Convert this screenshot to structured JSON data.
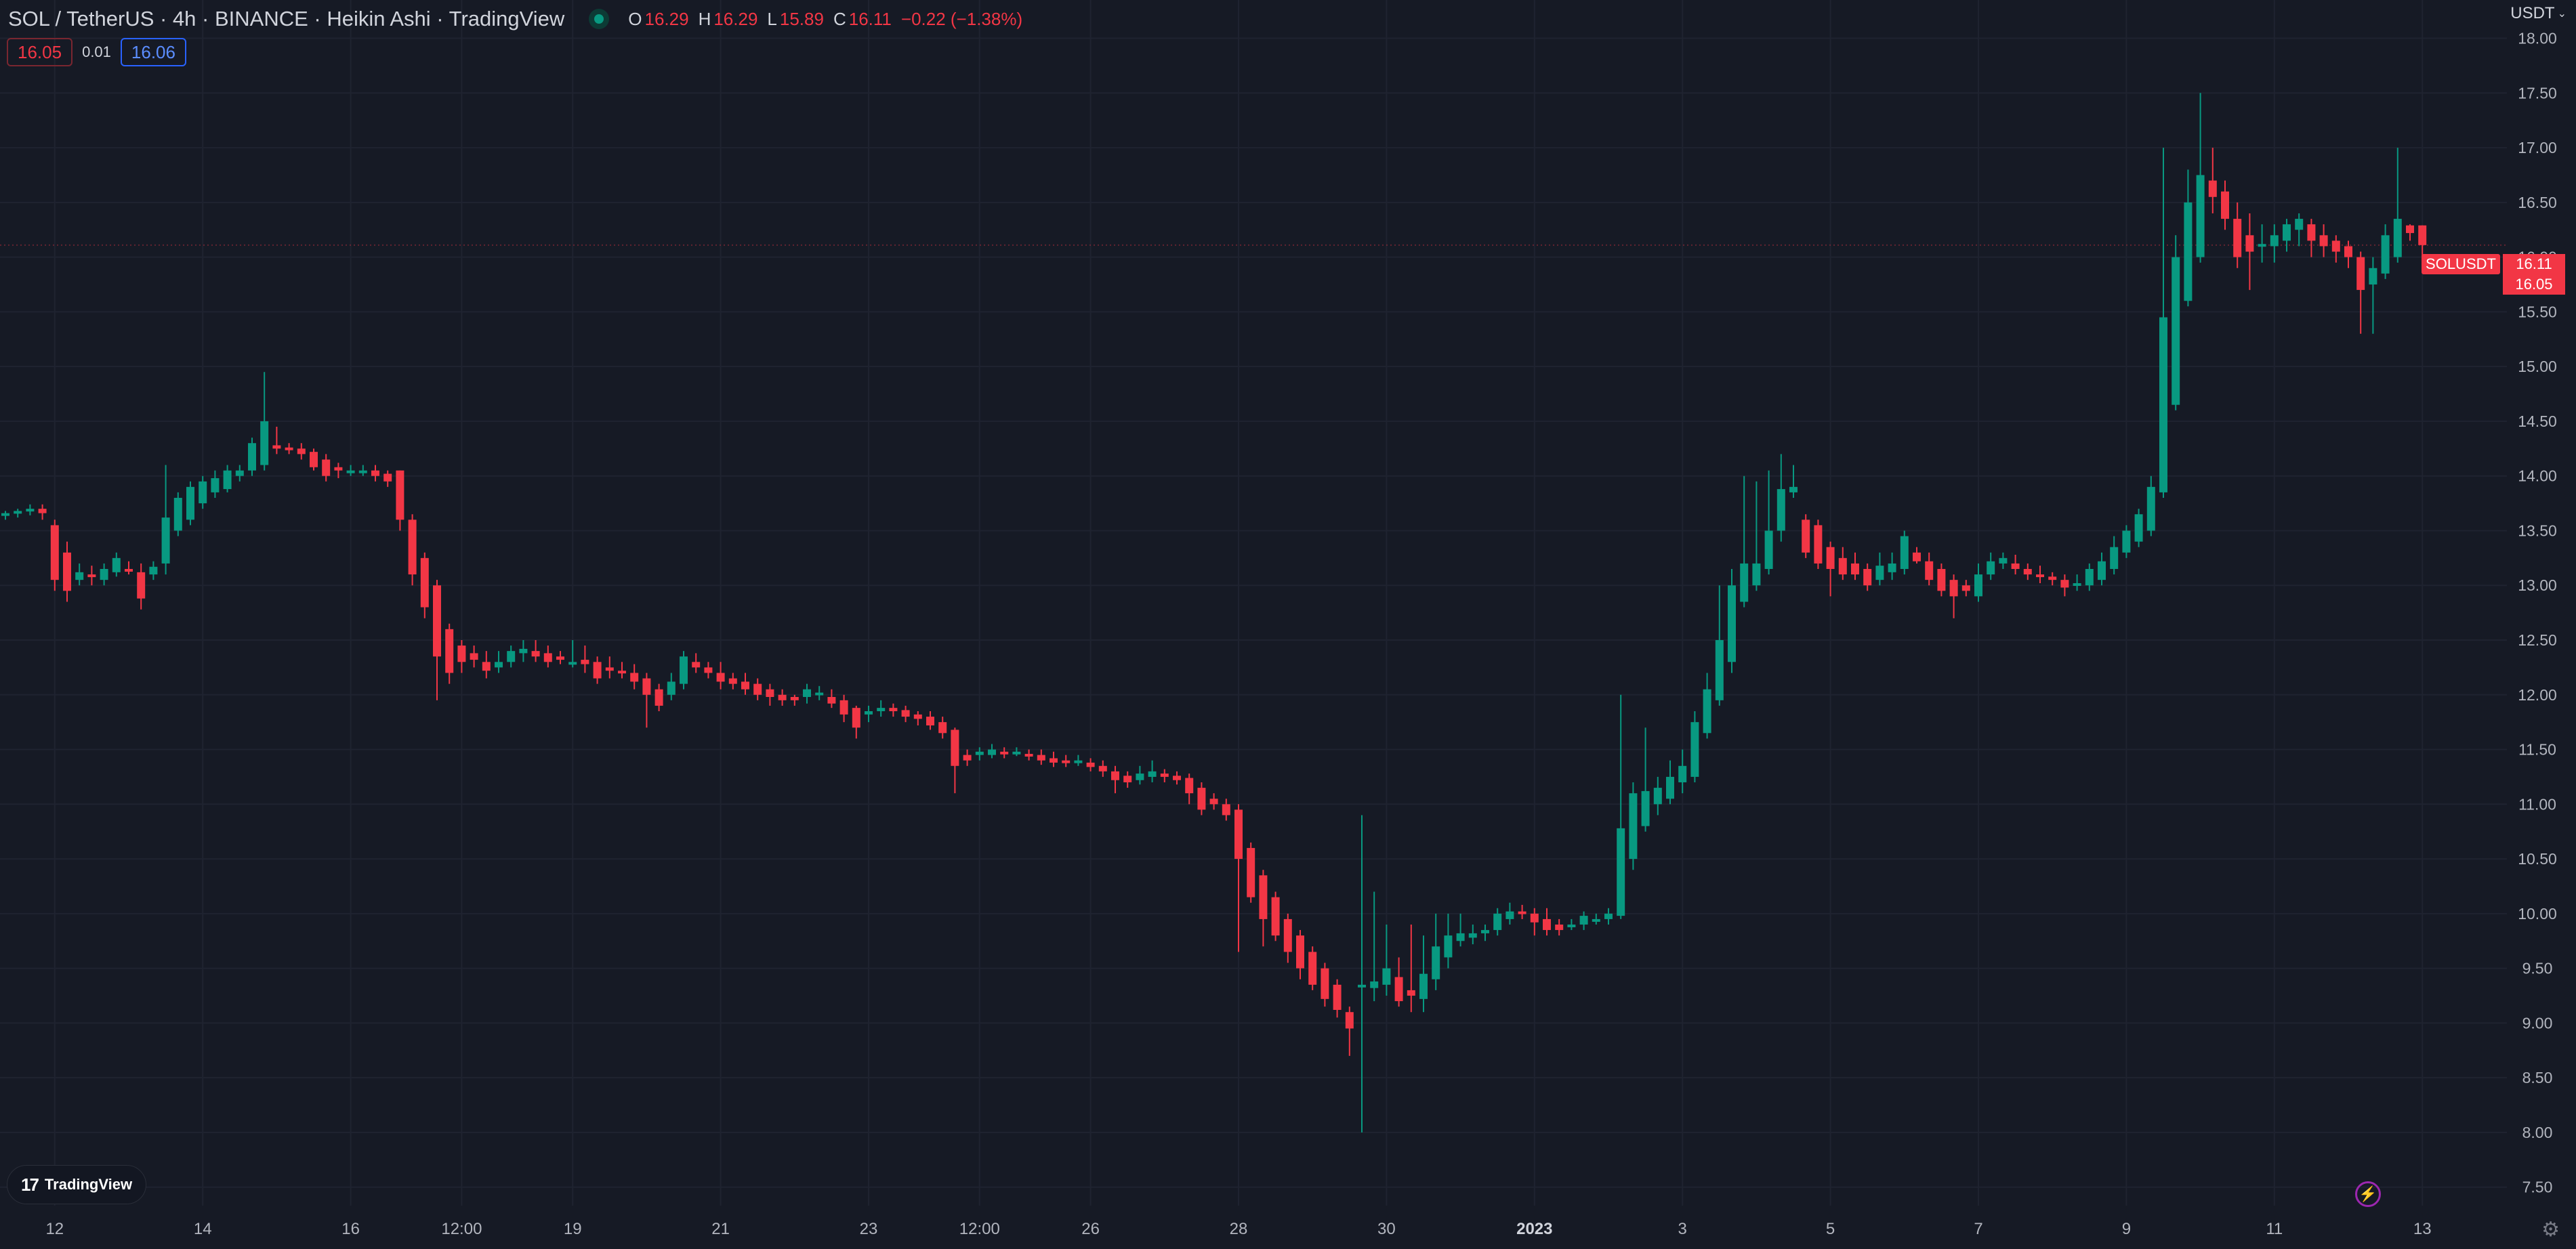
{
  "header": {
    "title": "SOL / TetherUS · 4h · BINANCE · Heikin Ashi · TradingView",
    "ohlc": {
      "o_label": "O",
      "o": "16.29",
      "h_label": "H",
      "h": "16.29",
      "l_label": "L",
      "l": "15.89",
      "c_label": "C",
      "c": "16.11",
      "change": "−0.22 (−1.38%)"
    }
  },
  "quote": {
    "sell": "16.05",
    "spread": "0.01",
    "buy": "16.06"
  },
  "currency": {
    "label": "USDT",
    "chevron": "⌄"
  },
  "price_scale": {
    "symbol_label": "SOLUSDT",
    "last_price": "16.11",
    "current_price": "16.05",
    "ticks": [
      "18.00",
      "17.50",
      "17.00",
      "16.50",
      "16.00",
      "15.50",
      "15.00",
      "14.50",
      "14.00",
      "13.50",
      "13.00",
      "12.50",
      "12.00",
      "11.50",
      "11.00",
      "10.50",
      "10.00",
      "9.50",
      "9.00",
      "8.50",
      "8.00",
      "7.50"
    ]
  },
  "time_scale": {
    "ticks": [
      "12",
      "14",
      "16",
      "12:00",
      "19",
      "21",
      "23",
      "12:00",
      "26",
      "28",
      "30",
      "2023",
      "3",
      "5",
      "7",
      "9",
      "11",
      "13"
    ]
  },
  "branding": {
    "logo_text": "TradingView",
    "logo_mark": "17"
  },
  "icons": {
    "bolt": "lightning-icon",
    "settings": "gear-icon"
  },
  "colors": {
    "up": "#089981",
    "down": "#f23645",
    "background": "#161a25",
    "grid": "#1f2330"
  },
  "chart_data": {
    "type": "candlestick",
    "style": "Heikin Ashi",
    "symbol": "SOL / TetherUS",
    "interval": "4h",
    "ylim": [
      7.3,
      18.35
    ],
    "grid": true,
    "time_ticks": [
      {
        "label": "12",
        "index": 4
      },
      {
        "label": "14",
        "index": 16
      },
      {
        "label": "16",
        "index": 28
      },
      {
        "label": "12:00",
        "index": 37
      },
      {
        "label": "19",
        "index": 46
      },
      {
        "label": "21",
        "index": 58
      },
      {
        "label": "23",
        "index": 70
      },
      {
        "label": "12:00",
        "index": 79
      },
      {
        "label": "26",
        "index": 88
      },
      {
        "label": "28",
        "index": 100
      },
      {
        "label": "30",
        "index": 112
      },
      {
        "label": "2023",
        "index": 124
      },
      {
        "label": "3",
        "index": 136
      },
      {
        "label": "5",
        "index": 148
      },
      {
        "label": "7",
        "index": 160
      },
      {
        "label": "9",
        "index": 172
      },
      {
        "label": "11",
        "index": 184
      },
      {
        "label": "13",
        "index": 196
      }
    ],
    "candles": [
      [
        13.64,
        13.66,
        13.6,
        13.68
      ],
      [
        13.66,
        13.68,
        13.62,
        13.7
      ],
      [
        13.68,
        13.7,
        13.64,
        13.74
      ],
      [
        13.7,
        13.66,
        13.6,
        13.74
      ],
      [
        13.55,
        13.05,
        12.95,
        13.6
      ],
      [
        13.3,
        12.95,
        12.85,
        13.4
      ],
      [
        13.05,
        13.12,
        13.0,
        13.2
      ],
      [
        13.1,
        13.08,
        13.0,
        13.18
      ],
      [
        13.05,
        13.15,
        13.0,
        13.2
      ],
      [
        13.12,
        13.25,
        13.08,
        13.3
      ],
      [
        13.15,
        13.14,
        13.1,
        13.22
      ],
      [
        13.12,
        12.88,
        12.78,
        13.2
      ],
      [
        13.1,
        13.17,
        13.05,
        13.22
      ],
      [
        13.2,
        13.62,
        13.1,
        14.1
      ],
      [
        13.5,
        13.8,
        13.45,
        13.85
      ],
      [
        13.6,
        13.9,
        13.55,
        13.95
      ],
      [
        13.75,
        13.95,
        13.7,
        14.0
      ],
      [
        13.85,
        13.98,
        13.8,
        14.05
      ],
      [
        13.88,
        14.05,
        13.85,
        14.1
      ],
      [
        14.0,
        14.05,
        13.95,
        14.1
      ],
      [
        14.05,
        14.3,
        14.0,
        14.35
      ],
      [
        14.1,
        14.5,
        14.05,
        14.95
      ],
      [
        14.28,
        14.25,
        14.2,
        14.45
      ],
      [
        14.26,
        14.24,
        14.2,
        14.3
      ],
      [
        14.25,
        14.2,
        14.15,
        14.3
      ],
      [
        14.22,
        14.08,
        14.05,
        14.25
      ],
      [
        14.15,
        14.0,
        13.95,
        14.2
      ],
      [
        14.08,
        14.05,
        13.98,
        14.12
      ],
      [
        14.05,
        14.05,
        14.0,
        14.1
      ],
      [
        14.05,
        14.05,
        14.0,
        14.1
      ],
      [
        14.05,
        14.0,
        13.95,
        14.1
      ],
      [
        14.02,
        13.95,
        13.9,
        14.05
      ],
      [
        14.05,
        13.6,
        13.5,
        14.05
      ],
      [
        13.6,
        13.1,
        13.0,
        13.65
      ],
      [
        13.25,
        12.8,
        12.7,
        13.3
      ],
      [
        13.0,
        12.35,
        11.95,
        13.05
      ],
      [
        12.6,
        12.2,
        12.1,
        12.65
      ],
      [
        12.45,
        12.3,
        12.2,
        12.5
      ],
      [
        12.38,
        12.32,
        12.25,
        12.45
      ],
      [
        12.3,
        12.22,
        12.15,
        12.4
      ],
      [
        12.25,
        12.3,
        12.2,
        12.4
      ],
      [
        12.3,
        12.4,
        12.25,
        12.45
      ],
      [
        12.38,
        12.42,
        12.3,
        12.5
      ],
      [
        12.4,
        12.35,
        12.3,
        12.5
      ],
      [
        12.38,
        12.3,
        12.25,
        12.45
      ],
      [
        12.35,
        12.32,
        12.28,
        12.4
      ],
      [
        12.3,
        12.3,
        12.25,
        12.5
      ],
      [
        12.32,
        12.28,
        12.2,
        12.45
      ],
      [
        12.3,
        12.15,
        12.1,
        12.35
      ],
      [
        12.25,
        12.22,
        12.15,
        12.35
      ],
      [
        12.22,
        12.2,
        12.15,
        12.3
      ],
      [
        12.2,
        12.12,
        12.05,
        12.28
      ],
      [
        12.15,
        12.0,
        11.7,
        12.2
      ],
      [
        12.05,
        11.9,
        11.85,
        12.1
      ],
      [
        12.0,
        12.12,
        11.95,
        12.2
      ],
      [
        12.1,
        12.35,
        12.05,
        12.4
      ],
      [
        12.3,
        12.25,
        12.2,
        12.38
      ],
      [
        12.25,
        12.2,
        12.15,
        12.3
      ],
      [
        12.2,
        12.12,
        12.05,
        12.3
      ],
      [
        12.15,
        12.1,
        12.05,
        12.2
      ],
      [
        12.12,
        12.05,
        12.0,
        12.2
      ],
      [
        12.1,
        12.0,
        11.95,
        12.15
      ],
      [
        12.05,
        11.98,
        11.9,
        12.1
      ],
      [
        12.0,
        11.95,
        11.9,
        12.05
      ],
      [
        11.98,
        11.95,
        11.9,
        12.0
      ],
      [
        11.98,
        12.05,
        11.92,
        12.1
      ],
      [
        12.0,
        12.02,
        11.95,
        12.08
      ],
      [
        11.98,
        11.92,
        11.88,
        12.05
      ],
      [
        11.95,
        11.82,
        11.75,
        12.0
      ],
      [
        11.88,
        11.7,
        11.6,
        11.9
      ],
      [
        11.82,
        11.85,
        11.75,
        11.9
      ],
      [
        11.85,
        11.88,
        11.8,
        11.95
      ],
      [
        11.88,
        11.85,
        11.8,
        11.92
      ],
      [
        11.86,
        11.8,
        11.75,
        11.9
      ],
      [
        11.82,
        11.78,
        11.72,
        11.85
      ],
      [
        11.8,
        11.72,
        11.68,
        11.85
      ],
      [
        11.75,
        11.65,
        11.6,
        11.8
      ],
      [
        11.68,
        11.35,
        11.1,
        11.7
      ],
      [
        11.45,
        11.4,
        11.35,
        11.5
      ],
      [
        11.45,
        11.48,
        11.4,
        11.52
      ],
      [
        11.45,
        11.5,
        11.42,
        11.55
      ],
      [
        11.48,
        11.46,
        11.42,
        11.52
      ],
      [
        11.47,
        11.48,
        11.44,
        11.52
      ],
      [
        11.46,
        11.45,
        11.4,
        11.5
      ],
      [
        11.45,
        11.4,
        11.36,
        11.5
      ],
      [
        11.42,
        11.38,
        11.34,
        11.48
      ],
      [
        11.4,
        11.38,
        11.34,
        11.45
      ],
      [
        11.39,
        11.4,
        11.35,
        11.45
      ],
      [
        11.38,
        11.34,
        11.3,
        11.42
      ],
      [
        11.35,
        11.3,
        11.25,
        11.4
      ],
      [
        11.3,
        11.22,
        11.1,
        11.35
      ],
      [
        11.26,
        11.2,
        11.15,
        11.3
      ],
      [
        11.22,
        11.28,
        11.18,
        11.35
      ],
      [
        11.25,
        11.3,
        11.2,
        11.4
      ],
      [
        11.28,
        11.25,
        11.2,
        11.32
      ],
      [
        11.26,
        11.22,
        11.18,
        11.3
      ],
      [
        11.24,
        11.1,
        11.0,
        11.28
      ],
      [
        11.15,
        10.95,
        10.9,
        11.2
      ],
      [
        11.05,
        11.0,
        10.95,
        11.1
      ],
      [
        11.0,
        10.9,
        10.85,
        11.05
      ],
      [
        10.95,
        10.5,
        9.65,
        11.0
      ],
      [
        10.6,
        10.15,
        10.1,
        10.65
      ],
      [
        10.35,
        9.95,
        9.7,
        10.4
      ],
      [
        10.15,
        9.8,
        9.75,
        10.2
      ],
      [
        9.95,
        9.65,
        9.55,
        10.0
      ],
      [
        9.8,
        9.5,
        9.4,
        9.85
      ],
      [
        9.65,
        9.35,
        9.3,
        9.7
      ],
      [
        9.5,
        9.22,
        9.15,
        9.55
      ],
      [
        9.35,
        9.12,
        9.05,
        9.4
      ],
      [
        9.1,
        8.95,
        8.7,
        9.15
      ],
      [
        9.33,
        9.35,
        8.0,
        10.9
      ],
      [
        9.32,
        9.38,
        9.2,
        10.2
      ],
      [
        9.35,
        9.5,
        9.25,
        9.9
      ],
      [
        9.42,
        9.2,
        9.15,
        9.6
      ],
      [
        9.3,
        9.25,
        9.1,
        9.9
      ],
      [
        9.22,
        9.45,
        9.1,
        9.8
      ],
      [
        9.4,
        9.7,
        9.3,
        10.0
      ],
      [
        9.6,
        9.8,
        9.5,
        10.0
      ],
      [
        9.75,
        9.82,
        9.7,
        10.0
      ],
      [
        9.78,
        9.82,
        9.72,
        9.9
      ],
      [
        9.82,
        9.85,
        9.75,
        9.9
      ],
      [
        9.85,
        10.0,
        9.8,
        10.05
      ],
      [
        9.95,
        10.02,
        9.9,
        10.1
      ],
      [
        10.02,
        10.0,
        9.95,
        10.08
      ],
      [
        10.0,
        9.92,
        9.8,
        10.05
      ],
      [
        9.95,
        9.85,
        9.8,
        10.05
      ],
      [
        9.9,
        9.85,
        9.8,
        9.95
      ],
      [
        9.88,
        9.9,
        9.85,
        9.95
      ],
      [
        9.9,
        9.98,
        9.85,
        10.02
      ],
      [
        9.95,
        9.95,
        9.9,
        10.0
      ],
      [
        9.95,
        10.0,
        9.9,
        10.05
      ],
      [
        9.98,
        10.78,
        9.95,
        12.0
      ],
      [
        10.5,
        11.1,
        10.4,
        11.2
      ],
      [
        10.8,
        11.12,
        10.75,
        11.7
      ],
      [
        11.0,
        11.15,
        10.9,
        11.25
      ],
      [
        11.05,
        11.25,
        11.0,
        11.4
      ],
      [
        11.2,
        11.35,
        11.1,
        11.5
      ],
      [
        11.25,
        11.75,
        11.2,
        11.85
      ],
      [
        11.65,
        12.05,
        11.6,
        12.2
      ],
      [
        11.95,
        12.5,
        11.9,
        13.0
      ],
      [
        12.3,
        13.0,
        12.2,
        13.15
      ],
      [
        12.85,
        13.2,
        12.8,
        14.0
      ],
      [
        13.0,
        13.2,
        12.95,
        13.95
      ],
      [
        13.15,
        13.5,
        13.1,
        14.05
      ],
      [
        13.5,
        13.88,
        13.4,
        14.2
      ],
      [
        13.85,
        13.9,
        13.8,
        14.1
      ],
      [
        13.6,
        13.3,
        13.25,
        13.65
      ],
      [
        13.55,
        13.2,
        13.15,
        13.6
      ],
      [
        13.35,
        13.15,
        12.9,
        13.4
      ],
      [
        13.25,
        13.1,
        13.05,
        13.35
      ],
      [
        13.2,
        13.1,
        13.05,
        13.3
      ],
      [
        13.15,
        13.0,
        12.95,
        13.2
      ],
      [
        13.05,
        13.18,
        13.0,
        13.3
      ],
      [
        13.12,
        13.2,
        13.05,
        13.3
      ],
      [
        13.15,
        13.45,
        13.1,
        13.5
      ],
      [
        13.3,
        13.22,
        13.2,
        13.35
      ],
      [
        13.22,
        13.05,
        13.0,
        13.3
      ],
      [
        13.15,
        12.95,
        12.9,
        13.2
      ],
      [
        13.05,
        12.9,
        12.7,
        13.1
      ],
      [
        13.0,
        12.95,
        12.9,
        13.05
      ],
      [
        12.9,
        13.1,
        12.85,
        13.2
      ],
      [
        13.1,
        13.22,
        13.05,
        13.3
      ],
      [
        13.2,
        13.25,
        13.15,
        13.3
      ],
      [
        13.2,
        13.15,
        13.1,
        13.28
      ],
      [
        13.15,
        13.1,
        13.05,
        13.2
      ],
      [
        13.1,
        13.08,
        13.02,
        13.18
      ],
      [
        13.08,
        13.05,
        13.0,
        13.12
      ],
      [
        13.05,
        12.98,
        12.9,
        13.1
      ],
      [
        13.0,
        13.02,
        12.95,
        13.1
      ],
      [
        13.0,
        13.15,
        12.95,
        13.2
      ],
      [
        13.05,
        13.22,
        13.0,
        13.3
      ],
      [
        13.15,
        13.35,
        13.1,
        13.45
      ],
      [
        13.3,
        13.5,
        13.25,
        13.55
      ],
      [
        13.4,
        13.65,
        13.35,
        13.7
      ],
      [
        13.5,
        13.9,
        13.45,
        14.0
      ],
      [
        13.85,
        15.45,
        13.8,
        17.0
      ],
      [
        14.65,
        16.0,
        14.6,
        16.2
      ],
      [
        15.6,
        16.5,
        15.55,
        16.8
      ],
      [
        16.0,
        16.75,
        15.95,
        17.5
      ],
      [
        16.7,
        16.55,
        16.4,
        17.0
      ],
      [
        16.6,
        16.35,
        16.25,
        16.7
      ],
      [
        16.35,
        16.0,
        15.9,
        16.5
      ],
      [
        16.2,
        16.05,
        15.7,
        16.4
      ],
      [
        16.1,
        16.12,
        15.95,
        16.3
      ],
      [
        16.1,
        16.2,
        15.95,
        16.3
      ],
      [
        16.15,
        16.3,
        16.05,
        16.35
      ],
      [
        16.25,
        16.35,
        16.1,
        16.4
      ],
      [
        16.3,
        16.15,
        16.0,
        16.35
      ],
      [
        16.2,
        16.1,
        16.0,
        16.3
      ],
      [
        16.15,
        16.05,
        15.95,
        16.2
      ],
      [
        16.1,
        16.0,
        15.9,
        16.15
      ],
      [
        16.0,
        15.7,
        15.3,
        16.05
      ],
      [
        15.75,
        15.9,
        15.3,
        16.0
      ],
      [
        15.85,
        16.2,
        15.8,
        16.3
      ],
      [
        16.0,
        16.35,
        15.95,
        17.0
      ],
      [
        16.29,
        16.22,
        16.15,
        16.3
      ],
      [
        16.29,
        16.11,
        15.89,
        16.29
      ]
    ]
  }
}
